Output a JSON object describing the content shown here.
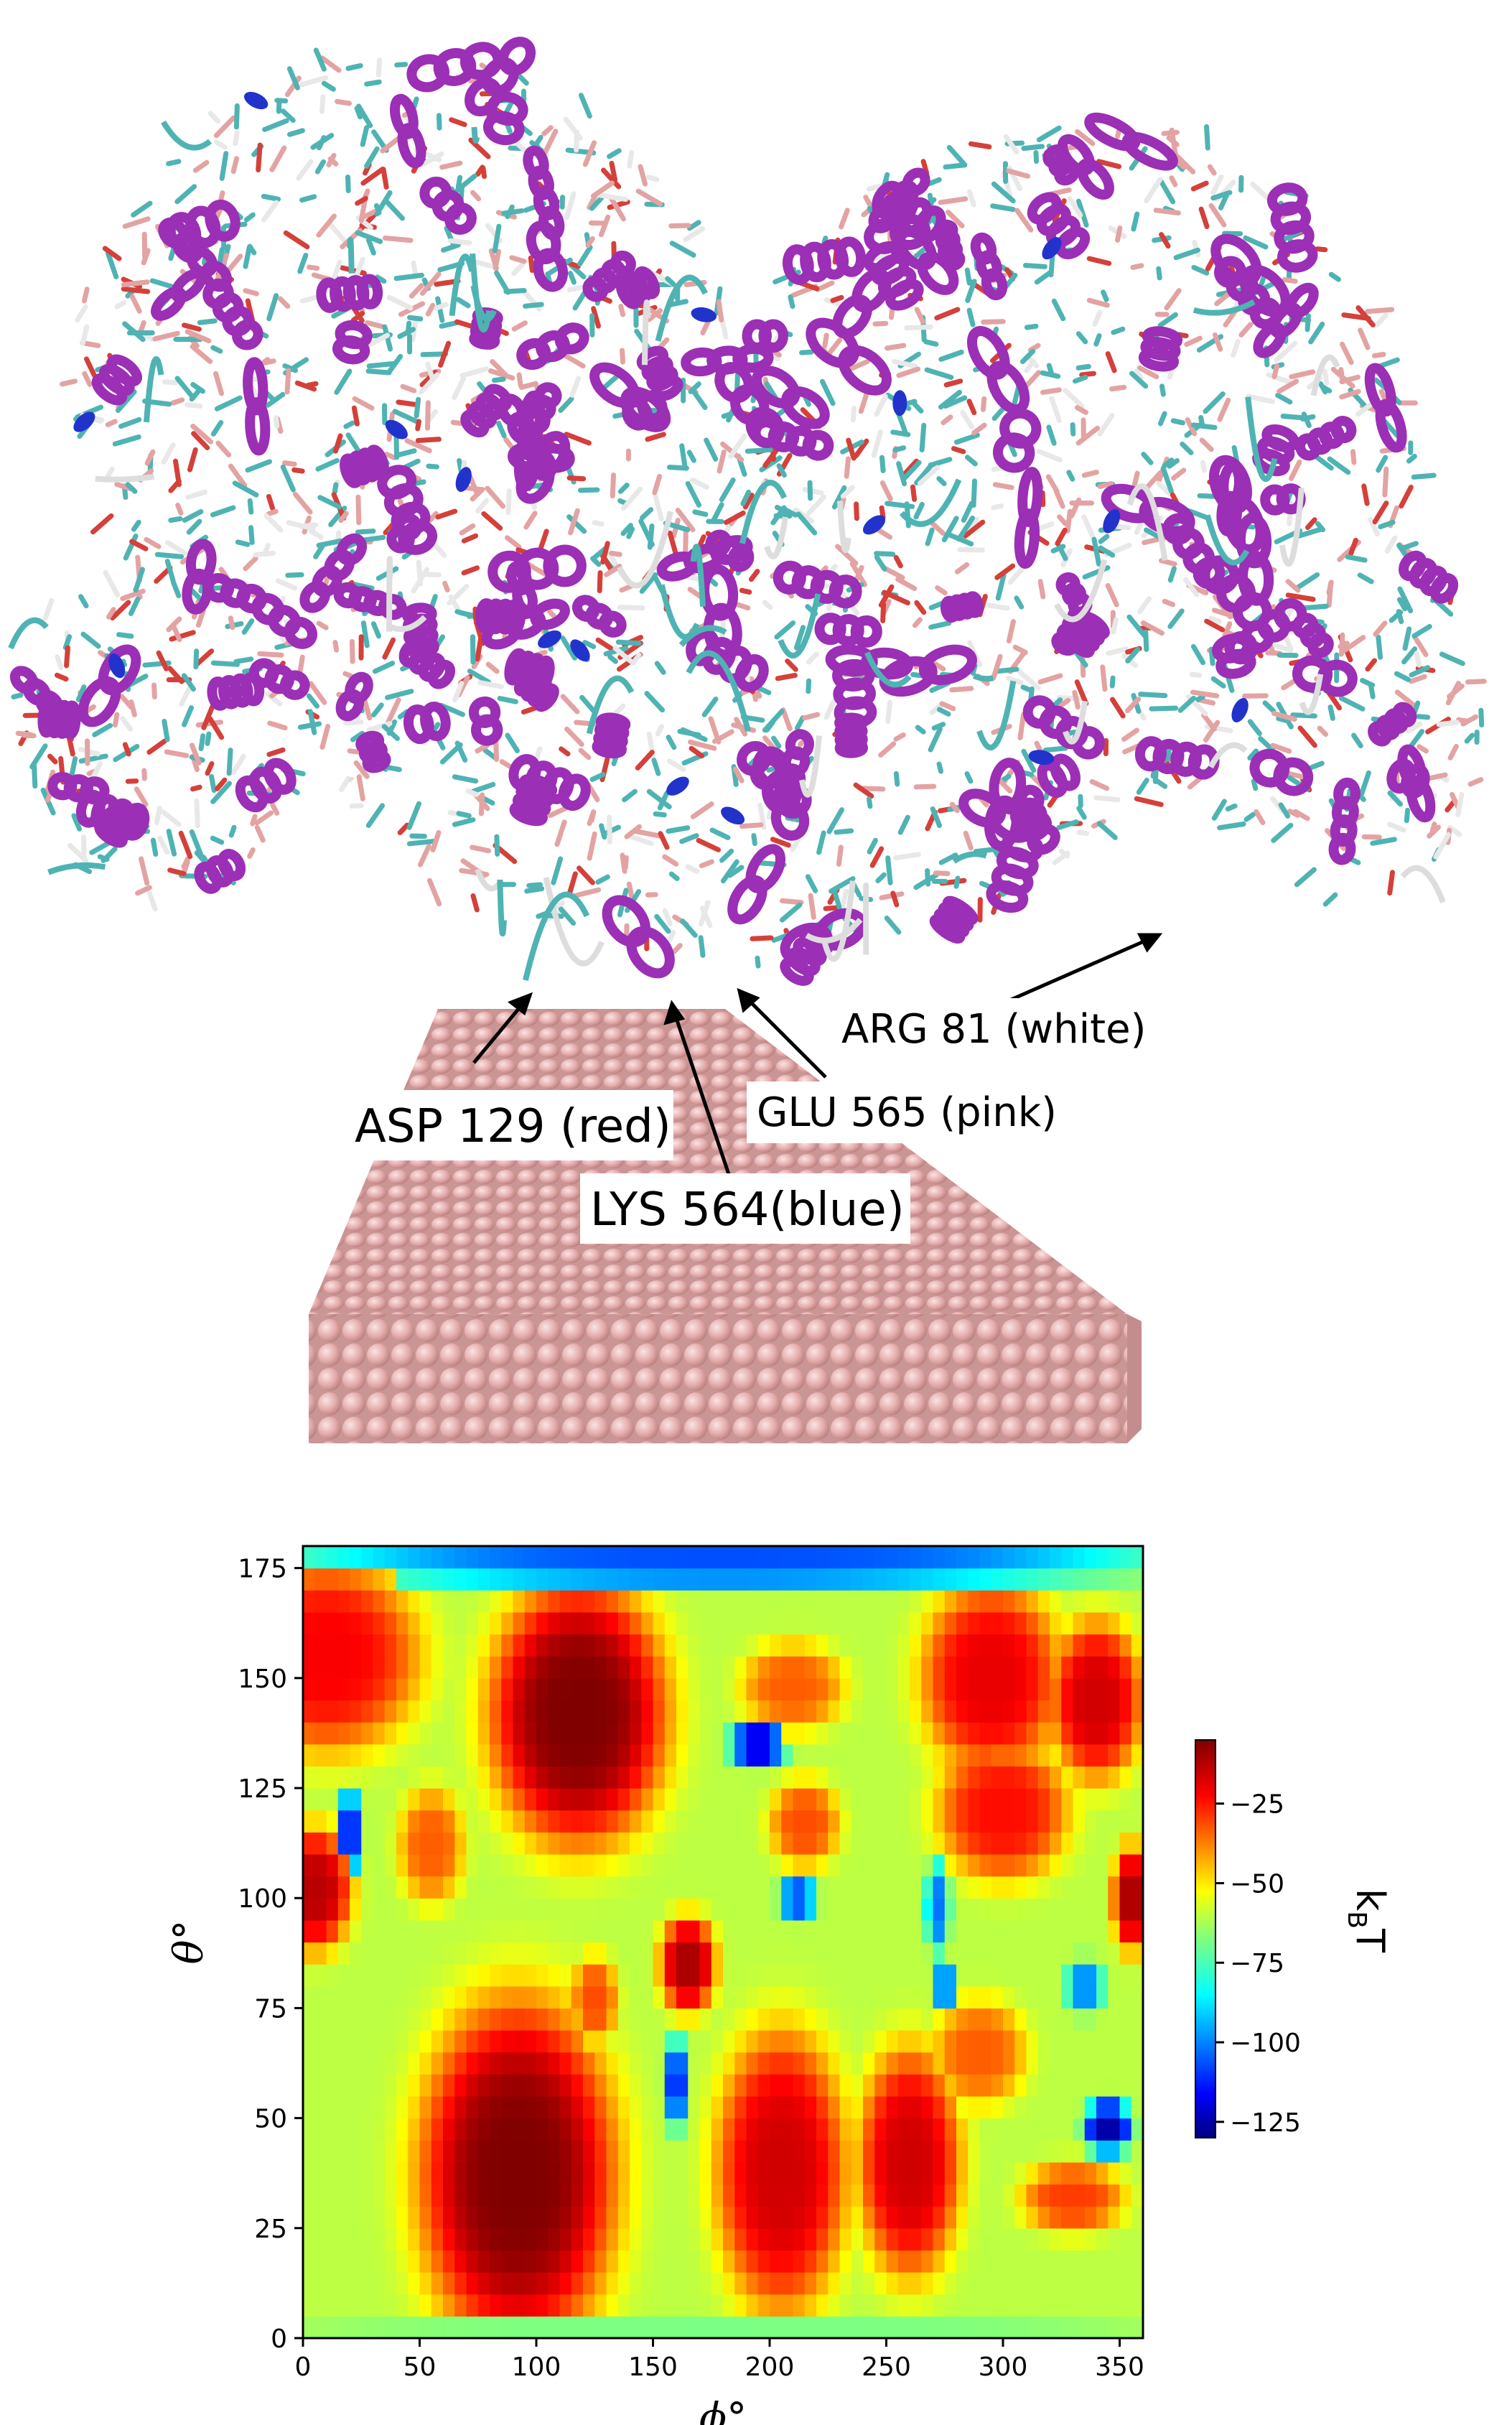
{
  "labels": {
    "asp": "ASP 129 (red)",
    "lys": "LYS 564(blue)",
    "glu": "GLU 565 (pink)",
    "arg": "ARG 81 (white)"
  },
  "colors": {
    "helix": "#9b2fb5",
    "turn_blue": "#2233cc",
    "cyan_residue": "#4fb3b3",
    "pink_residue": "#e3a3a3",
    "red_residue": "#d4403a",
    "surface_atom": "#e8b4b4"
  },
  "chart_data": {
    "type": "heatmap",
    "title": "",
    "xlabel": "ϕ°",
    "ylabel": "θ°",
    "xlim": [
      0,
      360
    ],
    "ylim": [
      0,
      180
    ],
    "xticks": [
      "0",
      "50",
      "100",
      "150",
      "200",
      "250",
      "300",
      "350"
    ],
    "yticks": [
      "0",
      "25",
      "50",
      "75",
      "100",
      "125",
      "150",
      "175"
    ],
    "colorbar": {
      "label": "kBT",
      "label_main": "k",
      "label_sub": "B",
      "label_tail": "T",
      "range": [
        -130,
        -5
      ],
      "ticks": [
        "−25",
        "−50",
        "−75",
        "−100",
        "−125"
      ],
      "tick_values": [
        -25,
        -50,
        -75,
        -100,
        -125
      ],
      "colormap": "jet"
    },
    "background_level": -60,
    "features": [
      {
        "phi": 92,
        "theta": 37,
        "rphi": 42,
        "rtheta": 40,
        "value": -5
      },
      {
        "phi": 118,
        "theta": 142,
        "rphi": 38,
        "rtheta": 30,
        "value": -5
      },
      {
        "phi": 205,
        "theta": 38,
        "rphi": 28,
        "rtheta": 32,
        "value": -15
      },
      {
        "phi": 260,
        "theta": 40,
        "rphi": 22,
        "rtheta": 26,
        "value": -15
      },
      {
        "phi": 5,
        "theta": 102,
        "rphi": 16,
        "rtheta": 14,
        "value": -12
      },
      {
        "phi": 165,
        "theta": 85,
        "rphi": 12,
        "rtheta": 11,
        "value": -10
      },
      {
        "phi": 10,
        "theta": 155,
        "rphi": 40,
        "rtheta": 22,
        "value": -20
      },
      {
        "phi": 295,
        "theta": 150,
        "rphi": 30,
        "rtheta": 22,
        "value": -18
      },
      {
        "phi": 340,
        "theta": 145,
        "rphi": 20,
        "rtheta": 18,
        "value": -15
      },
      {
        "phi": 300,
        "theta": 120,
        "rphi": 28,
        "rtheta": 16,
        "value": -22
      },
      {
        "phi": 355,
        "theta": 100,
        "rphi": 8,
        "rtheta": 12,
        "value": -10
      },
      {
        "phi": 210,
        "theta": 148,
        "rphi": 22,
        "rtheta": 10,
        "value": -32
      },
      {
        "phi": 215,
        "theta": 117,
        "rphi": 15,
        "rtheta": 10,
        "value": -30
      },
      {
        "phi": 55,
        "theta": 112,
        "rphi": 14,
        "rtheta": 13,
        "value": -32
      },
      {
        "phi": 125,
        "theta": 77,
        "rphi": 10,
        "rtheta": 10,
        "value": -30
      },
      {
        "phi": 290,
        "theta": 65,
        "rphi": 20,
        "rtheta": 12,
        "value": -32
      },
      {
        "phi": 330,
        "theta": 32,
        "rphi": 22,
        "rtheta": 8,
        "value": -28
      },
      {
        "phi": 20,
        "theta": 115,
        "rphi": 5,
        "rtheta": 10,
        "value": -112
      },
      {
        "phi": 195,
        "theta": 135,
        "rphi": 12,
        "rtheta": 5,
        "value": -120
      },
      {
        "phi": 212,
        "theta": 100,
        "rphi": 8,
        "rtheta": 5,
        "value": -105
      },
      {
        "phi": 160,
        "theta": 58,
        "rphi": 5,
        "rtheta": 10,
        "value": -110
      },
      {
        "phi": 272,
        "theta": 98,
        "rphi": 5,
        "rtheta": 10,
        "value": -100
      },
      {
        "phi": 275,
        "theta": 80,
        "rphi": 4,
        "rtheta": 5,
        "value": -110
      },
      {
        "phi": 335,
        "theta": 80,
        "rphi": 8,
        "rtheta": 6,
        "value": -98
      },
      {
        "phi": 345,
        "theta": 48,
        "rphi": 10,
        "rtheta": 6,
        "value": -125
      },
      {
        "phi": 180,
        "theta": 176,
        "rphi": 180,
        "rtheta": 5,
        "value": -105
      },
      {
        "phi": 180,
        "theta": 2,
        "rphi": 180,
        "rtheta": 3,
        "value": -68
      }
    ]
  }
}
